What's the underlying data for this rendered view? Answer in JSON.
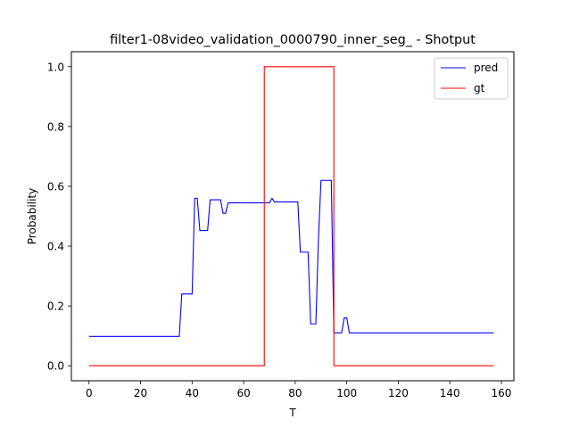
{
  "chart_data": {
    "type": "line",
    "title": "filter1-08video_validation_0000790_inner_seg_ - Shotput",
    "xlabel": "T",
    "ylabel": "Probability",
    "xlim": [
      -6.85,
      164.85
    ],
    "ylim": [
      -0.05,
      1.05
    ],
    "xticks": [
      0,
      20,
      40,
      60,
      80,
      100,
      120,
      140,
      160
    ],
    "yticks": [
      0.0,
      0.2,
      0.4,
      0.6,
      0.8,
      1.0
    ],
    "xtick_labels": [
      "0",
      "20",
      "40",
      "60",
      "80",
      "100",
      "120",
      "140",
      "160"
    ],
    "ytick_labels": [
      "0.0",
      "0.2",
      "0.4",
      "0.6",
      "0.8",
      "1.0"
    ],
    "grid": false,
    "legend_position": "top-right",
    "series": [
      {
        "name": "pred",
        "color": "#0000ff",
        "points": [
          [
            0,
            0.098
          ],
          [
            35,
            0.098
          ],
          [
            36,
            0.24
          ],
          [
            40,
            0.24
          ],
          [
            41,
            0.56
          ],
          [
            42,
            0.56
          ],
          [
            43,
            0.452
          ],
          [
            46,
            0.452
          ],
          [
            47,
            0.555
          ],
          [
            51,
            0.555
          ],
          [
            52,
            0.51
          ],
          [
            53,
            0.51
          ],
          [
            54,
            0.545
          ],
          [
            70,
            0.545
          ],
          [
            71,
            0.56
          ],
          [
            72,
            0.548
          ],
          [
            81,
            0.548
          ],
          [
            82,
            0.38
          ],
          [
            85,
            0.38
          ],
          [
            86,
            0.14
          ],
          [
            88,
            0.14
          ],
          [
            89,
            0.42
          ],
          [
            90,
            0.62
          ],
          [
            94,
            0.62
          ],
          [
            95,
            0.11
          ],
          [
            98,
            0.11
          ],
          [
            99,
            0.16
          ],
          [
            100,
            0.16
          ],
          [
            101,
            0.11
          ],
          [
            157,
            0.11
          ]
        ]
      },
      {
        "name": "gt",
        "color": "#ff0000",
        "points": [
          [
            0,
            0
          ],
          [
            68,
            0
          ],
          [
            68,
            1
          ],
          [
            95,
            1
          ],
          [
            95,
            0
          ],
          [
            157,
            0
          ]
        ]
      }
    ]
  }
}
